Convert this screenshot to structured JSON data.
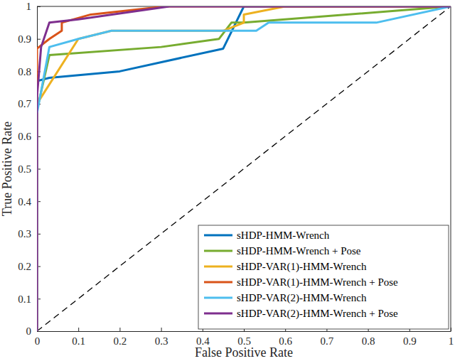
{
  "chart_data": {
    "type": "line",
    "x_label": "False Positive Rate",
    "y_label": "True Positive Rate",
    "xlim": [
      0,
      1
    ],
    "ylim": [
      0,
      1
    ],
    "xticks": [
      0,
      0.1,
      0.2,
      0.3,
      0.4,
      0.5,
      0.6,
      0.7,
      0.8,
      0.9,
      1
    ],
    "yticks": [
      0,
      0.1,
      0.2,
      0.3,
      0.4,
      0.5,
      0.6,
      0.7,
      0.8,
      0.9,
      1
    ],
    "grid": false,
    "legend": "lower right",
    "series": [
      {
        "name": "sHDP-HMM-Wrench",
        "color": "#0072bd",
        "x": [
          0,
          0,
          0.03,
          0.2,
          0.45,
          0.5,
          1
        ],
        "values": [
          0,
          0.77,
          0.78,
          0.8,
          0.87,
          1,
          1
        ]
      },
      {
        "name": "sHDP-HMM-Wrench + Pose",
        "color": "#77ac30",
        "x": [
          0,
          0,
          0.03,
          0.3,
          0.44,
          0.47,
          0.5,
          1
        ],
        "values": [
          0,
          0.68,
          0.85,
          0.875,
          0.9,
          0.95,
          0.95,
          1
        ]
      },
      {
        "name": "sHDP-VAR(1)-HMM-Wrench",
        "color": "#edb120",
        "x": [
          0,
          0,
          0.1,
          0.18,
          0.45,
          0.5,
          0.5,
          0.6,
          1
        ],
        "values": [
          0,
          0.7,
          0.9,
          0.925,
          0.925,
          0.95,
          0.975,
          1,
          1
        ]
      },
      {
        "name": "sHDP-VAR(1)-HMM-Wrench + Pose",
        "color": "#d95319",
        "x": [
          0,
          0,
          0.03,
          0.06,
          0.06,
          0.13,
          0.31,
          1
        ],
        "values": [
          0,
          0.87,
          0.9,
          0.925,
          0.95,
          0.975,
          1,
          1
        ]
      },
      {
        "name": "sHDP-VAR(2)-HMM-Wrench",
        "color": "#4dbeee",
        "x": [
          0,
          0,
          0.03,
          0.1,
          0.18,
          0.53,
          0.56,
          0.82,
          1
        ],
        "values": [
          0,
          0.67,
          0.875,
          0.9,
          0.925,
          0.925,
          0.95,
          0.95,
          1
        ]
      },
      {
        "name": "sHDP-VAR(2)-HMM-Wrench + Pose",
        "color": "#7e2f8e",
        "x": [
          0,
          0,
          0.01,
          0.03,
          0.1,
          0.32,
          1
        ],
        "values": [
          0,
          0.72,
          0.875,
          0.95,
          0.96,
          1,
          1
        ]
      }
    ]
  }
}
